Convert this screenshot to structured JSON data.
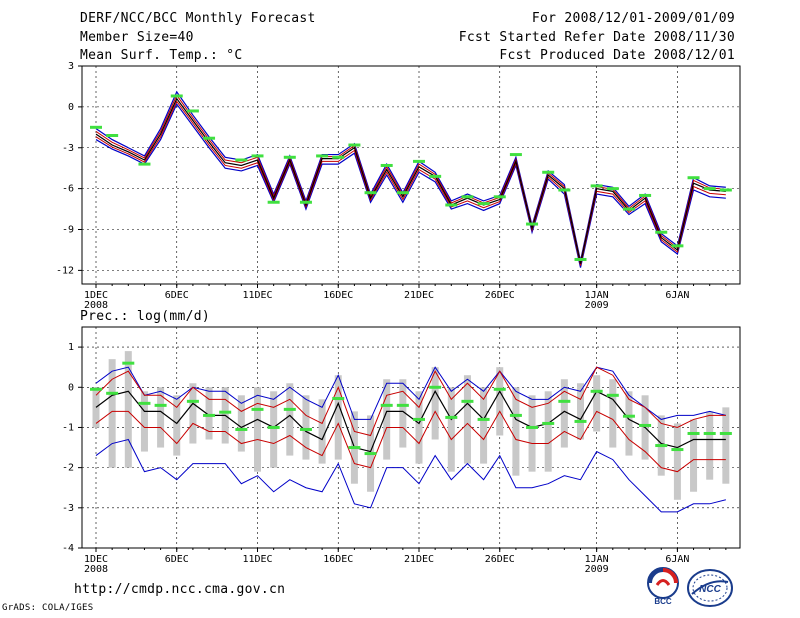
{
  "header": {
    "title": "DERF/NCC/BCC Monthly Forecast",
    "member_size": "Member Size=40",
    "variable1": "Mean Surf. Temp.: °C",
    "period": "For 2008/12/01-2009/01/09",
    "started": "Fcst Started Refer Date 2008/11/30",
    "produced": "Fcst Produced Date 2008/12/01"
  },
  "footer": {
    "url": "http://cmdp.ncc.cma.gov.cn",
    "grads": "GrADS: COLA/IGES",
    "logo_left": "BCC",
    "logo_right": "NCC"
  },
  "colors": {
    "ensemble_mean": "#000000",
    "upper_bound": "#0000c8",
    "lower_bound": "#c80000",
    "observed": "#40e040",
    "spread_bar": "#c8c8c8",
    "grid": "#000000"
  },
  "chart_data": [
    {
      "type": "line",
      "title": "Mean Surf. Temp.: °C",
      "x_tick_labels": [
        "1DEC",
        "6DEC",
        "11DEC",
        "16DEC",
        "21DEC",
        "26DEC",
        "1JAN",
        "6JAN"
      ],
      "x_year_labels": [
        "2008",
        "2009"
      ],
      "x_year_tick_days": [
        1,
        32
      ],
      "x_tick_days": [
        1,
        6,
        11,
        16,
        21,
        26,
        32,
        37
      ],
      "ylim": [
        -13,
        3
      ],
      "yticks": [
        3,
        0,
        -3,
        -6,
        -9,
        -12
      ],
      "days": [
        1,
        2,
        3,
        4,
        5,
        6,
        7,
        8,
        9,
        10,
        11,
        12,
        13,
        14,
        15,
        16,
        17,
        18,
        19,
        20,
        21,
        22,
        23,
        24,
        25,
        26,
        27,
        28,
        29,
        30,
        31,
        32,
        33,
        34,
        35,
        36,
        37,
        38,
        39,
        40
      ],
      "series": [
        {
          "name": "ensemble mean",
          "values": [
            -2.0,
            -2.8,
            -3.3,
            -3.9,
            -2.0,
            0.6,
            -1.0,
            -2.6,
            -4.1,
            -4.3,
            -3.9,
            -6.7,
            -3.9,
            -7.2,
            -3.8,
            -3.8,
            -3.0,
            -6.7,
            -4.6,
            -6.6,
            -4.4,
            -5.1,
            -7.2,
            -6.7,
            -7.2,
            -6.8,
            -4.0,
            -8.9,
            -5.0,
            -6.0,
            -11.5,
            -6.0,
            -6.2,
            -7.6,
            -6.7,
            -9.6,
            -10.5,
            -5.6,
            -6.1,
            -6.2
          ]
        },
        {
          "name": "upper",
          "values": [
            -1.6,
            -2.4,
            -3.0,
            -3.6,
            -1.6,
            1.1,
            -0.6,
            -2.2,
            -3.7,
            -3.9,
            -3.5,
            -6.4,
            -3.6,
            -6.9,
            -3.5,
            -3.5,
            -2.7,
            -6.4,
            -4.2,
            -6.3,
            -4.0,
            -4.8,
            -6.9,
            -6.4,
            -6.9,
            -6.5,
            -3.7,
            -8.7,
            -4.7,
            -5.7,
            -11.3,
            -5.7,
            -5.9,
            -7.3,
            -6.4,
            -9.3,
            -10.2,
            -5.2,
            -5.8,
            -5.9
          ]
        },
        {
          "name": "lower",
          "values": [
            -2.4,
            -3.1,
            -3.6,
            -4.2,
            -2.4,
            0.2,
            -1.4,
            -3.0,
            -4.5,
            -4.7,
            -4.3,
            -7.0,
            -4.2,
            -7.5,
            -4.2,
            -4.2,
            -3.4,
            -7.0,
            -5.0,
            -7.0,
            -4.8,
            -5.5,
            -7.5,
            -7.1,
            -7.6,
            -7.1,
            -4.3,
            -9.2,
            -5.3,
            -6.4,
            -11.8,
            -6.4,
            -6.6,
            -7.9,
            -7.1,
            -9.9,
            -10.8,
            -6.1,
            -6.6,
            -6.7
          ]
        },
        {
          "name": "observed",
          "values": [
            -1.5,
            -2.1,
            null,
            -4.2,
            null,
            0.8,
            -0.3,
            -2.3,
            null,
            -3.9,
            -3.6,
            -7.0,
            -3.7,
            -7.0,
            -3.6,
            -3.7,
            -2.8,
            -6.3,
            -4.3,
            -6.3,
            -4.0,
            -5.1,
            -7.2,
            -6.6,
            -7.1,
            -6.6,
            -3.5,
            -8.6,
            -4.8,
            -6.1,
            -11.2,
            -5.8,
            -6.0,
            -7.5,
            -6.5,
            -9.2,
            -10.2,
            -5.2,
            -6.0,
            -6.1
          ]
        }
      ]
    },
    {
      "type": "line",
      "title": "Prec.: log(mm/d)",
      "x_tick_labels": [
        "1DEC",
        "6DEC",
        "11DEC",
        "16DEC",
        "21DEC",
        "26DEC",
        "1JAN",
        "6JAN"
      ],
      "x_year_labels": [
        "2008",
        "2009"
      ],
      "x_year_tick_days": [
        1,
        32
      ],
      "x_tick_days": [
        1,
        6,
        11,
        16,
        21,
        26,
        32,
        37
      ],
      "ylim": [
        -4,
        1.5
      ],
      "yticks": [
        1,
        0,
        -1,
        -2,
        -3,
        -4
      ],
      "days": [
        1,
        2,
        3,
        4,
        5,
        6,
        7,
        8,
        9,
        10,
        11,
        12,
        13,
        14,
        15,
        16,
        17,
        18,
        19,
        20,
        21,
        22,
        23,
        24,
        25,
        26,
        27,
        28,
        29,
        30,
        31,
        32,
        33,
        34,
        35,
        36,
        37,
        38,
        39,
        40
      ],
      "series": [
        {
          "name": "ensemble mean",
          "values": [
            -0.5,
            -0.2,
            -0.1,
            -0.6,
            -0.6,
            -0.9,
            -0.4,
            -0.7,
            -0.7,
            -1.0,
            -0.8,
            -1.0,
            -0.7,
            -1.1,
            -1.3,
            -0.4,
            -1.5,
            -1.6,
            -0.6,
            -0.6,
            -0.9,
            -0.1,
            -0.8,
            -0.4,
            -0.8,
            -0.1,
            -0.8,
            -1.0,
            -0.9,
            -0.6,
            -0.8,
            -0.1,
            -0.3,
            -0.8,
            -1.0,
            -1.4,
            -1.5,
            -1.3,
            -1.3,
            -1.3
          ]
        },
        {
          "name": "upper",
          "values": [
            -0.2,
            0.2,
            0.4,
            -0.2,
            -0.2,
            -0.5,
            0.0,
            -0.3,
            -0.3,
            -0.6,
            -0.4,
            -0.5,
            -0.3,
            -0.7,
            -0.9,
            0.0,
            -1.1,
            -1.2,
            -0.2,
            -0.1,
            -0.5,
            0.4,
            -0.3,
            0.1,
            -0.3,
            0.4,
            -0.3,
            -0.5,
            -0.4,
            -0.1,
            -0.3,
            0.5,
            0.3,
            -0.3,
            -0.5,
            -0.9,
            -1.0,
            -0.8,
            -0.7,
            -0.7
          ]
        },
        {
          "name": "lower",
          "values": [
            -0.9,
            -0.6,
            -0.6,
            -1.0,
            -1.0,
            -1.4,
            -0.9,
            -1.1,
            -1.1,
            -1.4,
            -1.3,
            -1.4,
            -1.2,
            -1.5,
            -1.7,
            -0.9,
            -1.9,
            -2.0,
            -1.0,
            -1.0,
            -1.4,
            -0.6,
            -1.3,
            -0.9,
            -1.3,
            -0.6,
            -1.3,
            -1.4,
            -1.4,
            -1.1,
            -1.3,
            -0.6,
            -0.8,
            -1.3,
            -1.6,
            -2.0,
            -2.1,
            -1.8,
            -1.8,
            -1.8
          ]
        },
        {
          "name": "outer upper",
          "values": [
            0.1,
            0.4,
            0.5,
            -0.2,
            -0.1,
            -0.3,
            0.0,
            -0.1,
            -0.1,
            -0.4,
            -0.2,
            -0.3,
            0.0,
            -0.3,
            -0.5,
            0.3,
            -0.8,
            -0.8,
            0.1,
            0.1,
            -0.3,
            0.5,
            -0.1,
            0.2,
            -0.1,
            0.4,
            -0.1,
            -0.3,
            -0.3,
            0.0,
            -0.1,
            0.5,
            0.4,
            -0.2,
            -0.5,
            -0.8,
            -0.7,
            -0.7,
            -0.6,
            -0.7
          ]
        },
        {
          "name": "outer lower",
          "values": [
            -1.7,
            -1.4,
            -1.3,
            -2.1,
            -2.0,
            -2.3,
            -1.9,
            -1.9,
            -1.9,
            -2.4,
            -2.2,
            -2.6,
            -2.3,
            -2.5,
            -2.6,
            -1.9,
            -2.9,
            -3.0,
            -2.0,
            -2.0,
            -2.4,
            -1.7,
            -2.3,
            -1.9,
            -2.3,
            -1.7,
            -2.5,
            -2.5,
            -2.4,
            -2.2,
            -2.3,
            -1.6,
            -1.8,
            -2.3,
            -2.7,
            -3.1,
            -3.1,
            -2.9,
            -2.9,
            -2.8
          ]
        },
        {
          "name": "spread high",
          "values": [
            0.0,
            0.7,
            0.9,
            -0.1,
            0.0,
            -0.2,
            0.1,
            0.0,
            0.0,
            -0.2,
            0.0,
            -0.1,
            0.1,
            -0.2,
            -0.3,
            0.3,
            -0.6,
            -0.7,
            0.2,
            0.2,
            -0.1,
            0.5,
            0.0,
            0.3,
            0.0,
            0.5,
            0.0,
            -0.2,
            -0.1,
            0.2,
            0.1,
            0.3,
            0.2,
            -0.1,
            -0.2,
            -0.7,
            -0.9,
            -0.8,
            -0.6,
            -0.5
          ]
        },
        {
          "name": "spread low",
          "values": [
            -1.0,
            -2.0,
            -2.0,
            -1.6,
            -1.5,
            -1.7,
            -1.4,
            -1.3,
            -1.4,
            -1.6,
            -2.1,
            -2.0,
            -1.7,
            -1.8,
            -1.9,
            -1.8,
            -2.4,
            -2.6,
            -1.8,
            -1.5,
            -1.9,
            -1.3,
            -2.1,
            -1.9,
            -1.9,
            -1.2,
            -2.2,
            -2.1,
            -2.1,
            -1.5,
            -1.3,
            -1.1,
            -1.5,
            -1.7,
            -1.8,
            -2.2,
            -2.8,
            -2.6,
            -2.3,
            -2.4
          ]
        },
        {
          "name": "observed",
          "values": [
            -0.05,
            -0.15,
            0.6,
            -0.4,
            -0.45,
            null,
            -0.35,
            -0.7,
            -0.62,
            -1.05,
            -0.55,
            -1.0,
            -0.55,
            -1.05,
            null,
            -0.28,
            -1.5,
            -1.65,
            -0.45,
            -0.45,
            -0.8,
            0.0,
            -0.75,
            -0.35,
            -0.8,
            -0.05,
            -0.7,
            -1.0,
            -0.9,
            -0.35,
            -0.85,
            -0.1,
            -0.2,
            -0.72,
            -0.95,
            -1.45,
            -1.55,
            -1.15,
            -1.15,
            -1.15
          ]
        }
      ]
    }
  ]
}
